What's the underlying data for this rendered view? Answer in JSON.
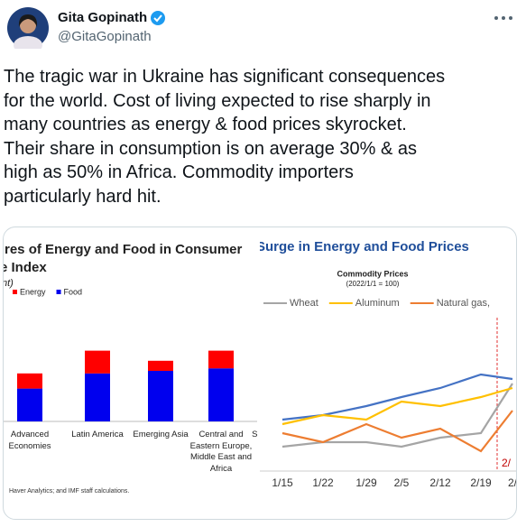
{
  "header": {
    "name": "Gita Gopinath",
    "handle": "@GitaGopinath"
  },
  "tweet": {
    "lines": [
      "The tragic war in Ukraine has significant consequences",
      "for the world. Cost of living expected to rise sharply in",
      "many countries as energy & food prices skyrocket.",
      "Their share in consumption is on average 30% & as",
      "high as 50% in Africa. Commodity importers",
      "particularly hard hit."
    ]
  },
  "chart_data": [
    {
      "type": "bar",
      "title": [
        "res of Energy and Food in Consumer",
        "e Index"
      ],
      "subtitle": "nt)",
      "categories": [
        "Advanced Economies",
        "Latin America",
        "Emerging Asia",
        "Central and Eastern Europe, Middle East and Africa",
        "Sul"
      ],
      "series": [
        {
          "name": "Food",
          "color": "#0000ee",
          "values": [
            13,
            19,
            20,
            21,
            null
          ]
        },
        {
          "name": "Energy",
          "color": "#ff0000",
          "values": [
            6,
            9,
            4,
            7,
            null
          ]
        }
      ],
      "source": "Haver Analytics; and IMF staff calculations."
    },
    {
      "type": "line",
      "title": "Surge in Energy and Food Prices",
      "subtitle": [
        "Commodity Prices",
        "(2022/1/1 = 100)"
      ],
      "categories": [
        "1/15",
        "1/22",
        "1/29",
        "2/5",
        "2/12",
        "2/19",
        "2/"
      ],
      "series": [
        {
          "name": null,
          "color": "#4472c4",
          "values": [
            115,
            120,
            130,
            140,
            150,
            165,
            160
          ]
        },
        {
          "name": "Wheat",
          "color": "#a5a5a5",
          "values": [
            85,
            90,
            90,
            85,
            95,
            100,
            155
          ]
        },
        {
          "name": "Aluminum",
          "color": "#ffc000",
          "values": [
            110,
            120,
            115,
            135,
            130,
            140,
            150
          ]
        },
        {
          "name": "Natural gas,",
          "color": "#ed7d31",
          "values": [
            100,
            90,
            110,
            95,
            105,
            80,
            125
          ]
        }
      ],
      "annotation": "2/"
    }
  ]
}
